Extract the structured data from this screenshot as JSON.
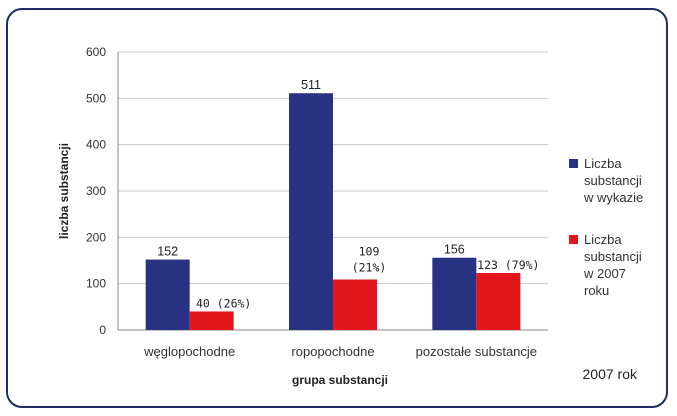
{
  "chart_data": {
    "type": "bar",
    "categories": [
      "węglopochodne",
      "ropopochodne",
      "pozostałe substancje"
    ],
    "series": [
      {
        "name": "Liczba substancji w wykazie",
        "color": "#283282",
        "values": [
          152,
          511,
          156
        ],
        "labels": [
          "152",
          "511",
          "156"
        ]
      },
      {
        "name": "Liczba substancji w 2007 roku",
        "color": "#e3161d",
        "values": [
          40,
          109,
          123
        ],
        "labels": [
          "40 (26%)",
          "109 (21%)",
          "123 (79%)"
        ]
      }
    ],
    "xlabel": "grupa substancji",
    "ylabel": "liczba substancji",
    "ylim": [
      0,
      600
    ],
    "yticks": [
      0,
      100,
      200,
      300,
      400,
      500,
      600
    ],
    "grid": true,
    "legend_position": "right",
    "legend_lines": [
      [
        "Liczba",
        "substancji",
        "w wykazie"
      ],
      [
        "Liczba",
        "substancji",
        "w 2007",
        "roku"
      ]
    ]
  },
  "caption": "2007 rok"
}
